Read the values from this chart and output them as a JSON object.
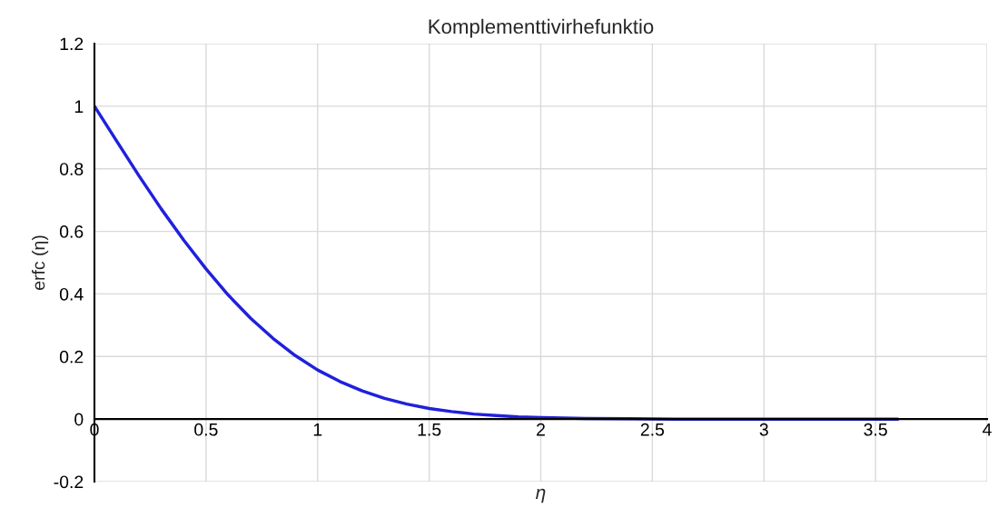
{
  "chart_data": {
    "type": "line",
    "title": "Komplementtivirhefunktio",
    "xlabel": "η",
    "ylabel": "erfc (η)",
    "x": [
      0,
      0.1,
      0.2,
      0.3,
      0.4,
      0.5,
      0.6,
      0.7,
      0.8,
      0.9,
      1.0,
      1.1,
      1.2,
      1.3,
      1.4,
      1.5,
      1.6,
      1.7,
      1.8,
      1.9,
      2.0,
      2.2,
      2.4,
      2.6,
      2.8,
      3.0,
      3.2,
      3.4,
      3.6
    ],
    "series": [
      {
        "color": "#2020dd",
        "values": [
          1.0,
          0.888,
          0.777,
          0.671,
          0.572,
          0.48,
          0.396,
          0.322,
          0.258,
          0.203,
          0.157,
          0.12,
          0.09,
          0.066,
          0.048,
          0.034,
          0.024,
          0.016,
          0.011,
          0.007,
          0.005,
          0.002,
          0.001,
          0.0,
          0.0,
          0.0,
          0.0,
          0.0,
          0.0
        ]
      }
    ],
    "xlim": [
      0,
      4
    ],
    "ylim": [
      -0.2,
      1.2
    ],
    "xticks": [
      0,
      0.5,
      1,
      1.5,
      2,
      2.5,
      3,
      3.5,
      4
    ],
    "yticks": [
      -0.2,
      0,
      0.2,
      0.4,
      0.6,
      0.8,
      1,
      1.2
    ],
    "grid": true,
    "marker": "none",
    "line_style": "solid"
  }
}
